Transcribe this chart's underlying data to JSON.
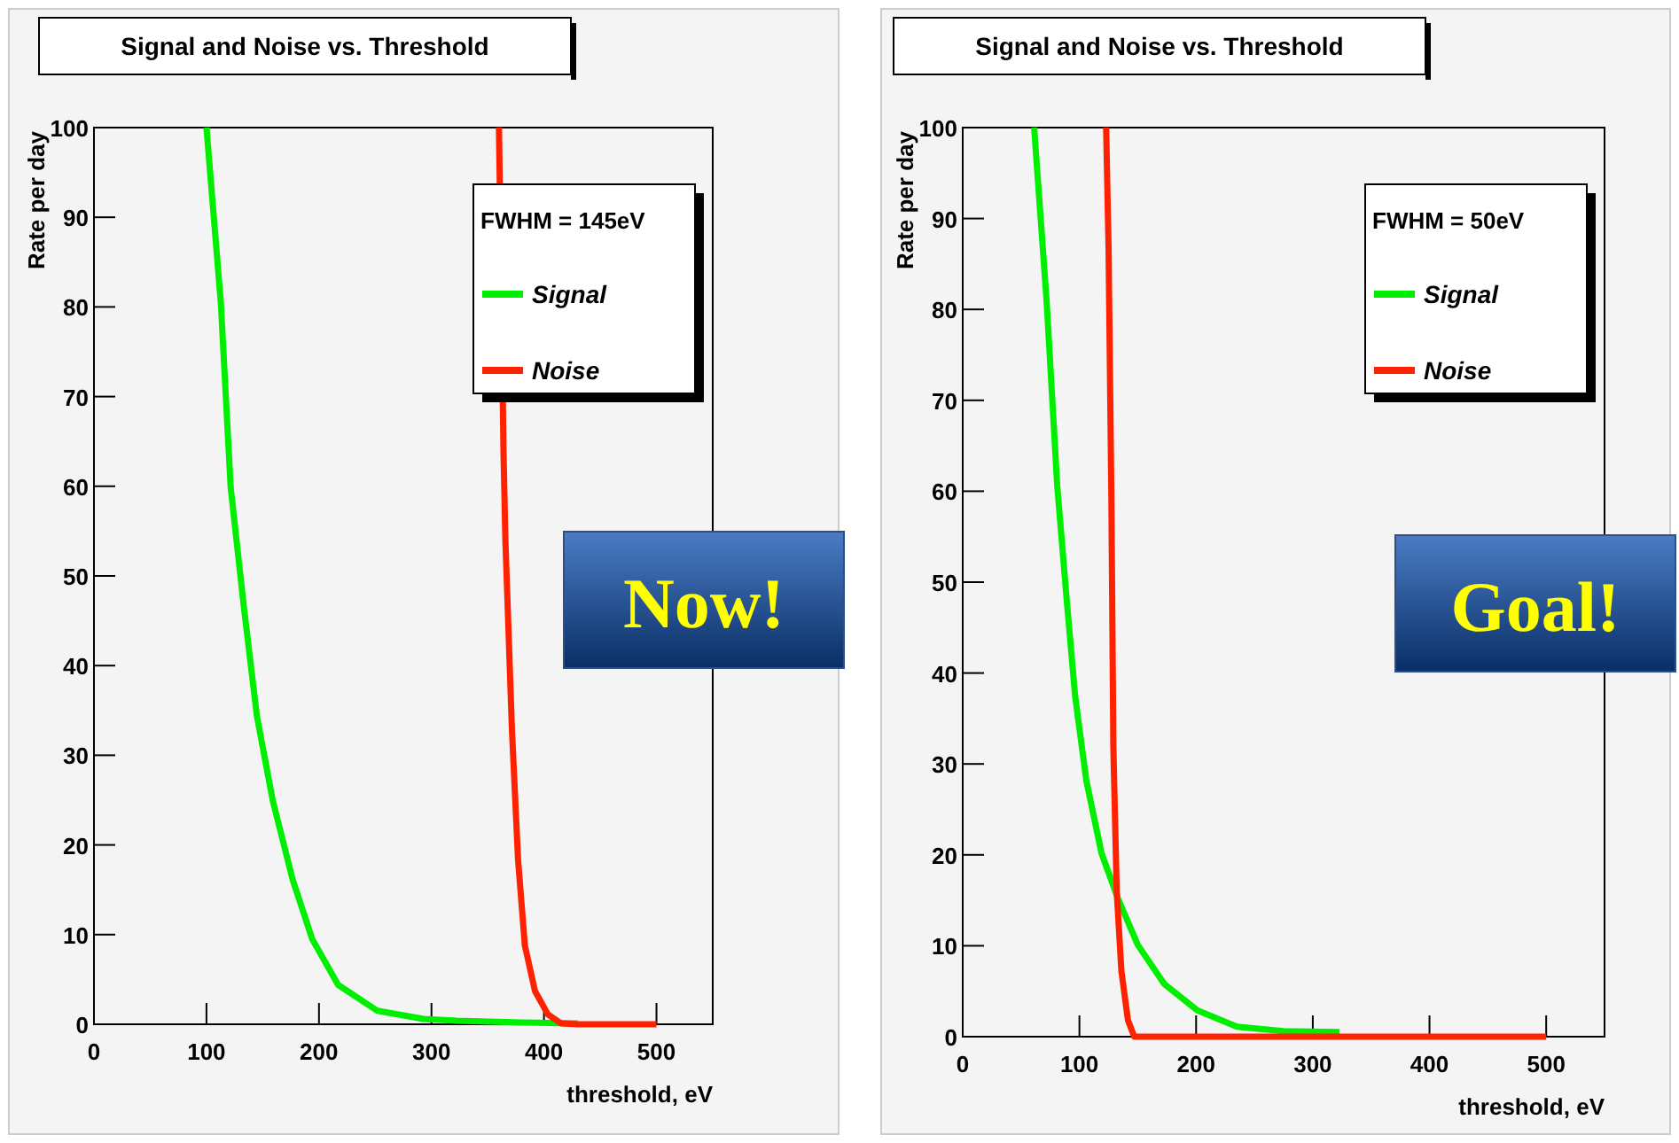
{
  "chart_data": [
    {
      "type": "line",
      "title": "Signal and Noise vs. Threshold",
      "xlabel": "threshold, eV",
      "ylabel": "Rate per day",
      "legend_title": "FWHM = 145eV",
      "legend": "top right",
      "annotations": [
        "Now!"
      ],
      "xlim": [
        0,
        550
      ],
      "ylim": [
        0,
        100
      ],
      "xticks": [
        0,
        100,
        200,
        300,
        400,
        500
      ],
      "yticks": [
        0,
        10,
        20,
        30,
        40,
        50,
        60,
        70,
        80,
        90,
        100
      ],
      "series": [
        {
          "name": "Signal",
          "color": "#00ee00",
          "x": [
            100,
            112.8,
            121.5,
            133,
            144.8,
            159,
            176.7,
            194,
            217,
            252,
            293,
            322,
            380,
            430
          ],
          "values": [
            100,
            80.4,
            59.9,
            46.8,
            34.4,
            24.9,
            16.1,
            9.5,
            4.4,
            1.5,
            0.6,
            0.4,
            0.2,
            0.1
          ]
        },
        {
          "name": "Noise",
          "color": "#ff2200",
          "x": [
            360,
            364,
            365.7,
            371.5,
            377,
            383,
            392,
            403.5,
            415,
            430,
            500
          ],
          "values": [
            100,
            64,
            54,
            32.9,
            18.3,
            8.8,
            3.7,
            1.1,
            0.1,
            0,
            0
          ]
        }
      ]
    },
    {
      "type": "line",
      "title": "Signal and Noise vs. Threshold",
      "xlabel": "threshold, eV",
      "ylabel": "Rate per day",
      "legend_title": "FWHM = 50eV",
      "legend": "top right",
      "annotations": [
        "Goal!"
      ],
      "xlim": [
        0,
        550
      ],
      "ylim": [
        0,
        100
      ],
      "xticks": [
        0,
        100,
        200,
        300,
        400,
        500
      ],
      "yticks": [
        0,
        10,
        20,
        30,
        40,
        50,
        60,
        70,
        80,
        90,
        100
      ],
      "series": [
        {
          "name": "Signal",
          "color": "#00ee00",
          "x": [
            61.2,
            71.9,
            81,
            88.9,
            96.3,
            105.9,
            118.9,
            133,
            150,
            172.7,
            201,
            235,
            274.6,
            322.8
          ],
          "values": [
            100,
            80.9,
            60.6,
            48.4,
            37.5,
            28.2,
            20.2,
            15.2,
            10.1,
            5.8,
            2.9,
            1.1,
            0.6,
            0.5
          ]
        },
        {
          "name": "Noise",
          "color": "#ff2200",
          "x": [
            122.9,
            125,
            127.4,
            129.1,
            132,
            136,
            141.6,
            147,
            500
          ],
          "values": [
            100,
            86.6,
            59.2,
            31.8,
            15.9,
            7.2,
            1.8,
            0,
            0
          ]
        }
      ]
    }
  ]
}
